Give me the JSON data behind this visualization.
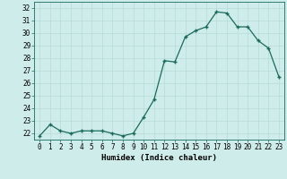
{
  "x": [
    0,
    1,
    2,
    3,
    4,
    5,
    6,
    7,
    8,
    9,
    10,
    11,
    12,
    13,
    14,
    15,
    16,
    17,
    18,
    19,
    20,
    21,
    22,
    23
  ],
  "y": [
    21.8,
    22.7,
    22.2,
    22.0,
    22.2,
    22.2,
    22.2,
    22.0,
    21.8,
    22.0,
    23.3,
    24.7,
    27.8,
    27.7,
    29.7,
    30.2,
    30.5,
    31.7,
    31.6,
    30.5,
    30.5,
    29.4,
    28.8,
    26.5
  ],
  "line_color": "#1a6b5a",
  "marker": "+",
  "marker_size": 3.5,
  "bg_color": "#ceecea",
  "grid_color": "#b8dbd8",
  "xlabel": "Humidex (Indice chaleur)",
  "xlim": [
    -0.5,
    23.5
  ],
  "ylim": [
    21.5,
    32.5
  ],
  "yticks": [
    22,
    23,
    24,
    25,
    26,
    27,
    28,
    29,
    30,
    31,
    32
  ],
  "xtick_labels": [
    "0",
    "1",
    "2",
    "3",
    "4",
    "5",
    "6",
    "7",
    "8",
    "9",
    "10",
    "11",
    "12",
    "13",
    "14",
    "15",
    "16",
    "17",
    "18",
    "19",
    "20",
    "21",
    "22",
    "23"
  ],
  "tick_fontsize": 5.5,
  "xlabel_fontsize": 6.5,
  "linewidth": 0.9
}
